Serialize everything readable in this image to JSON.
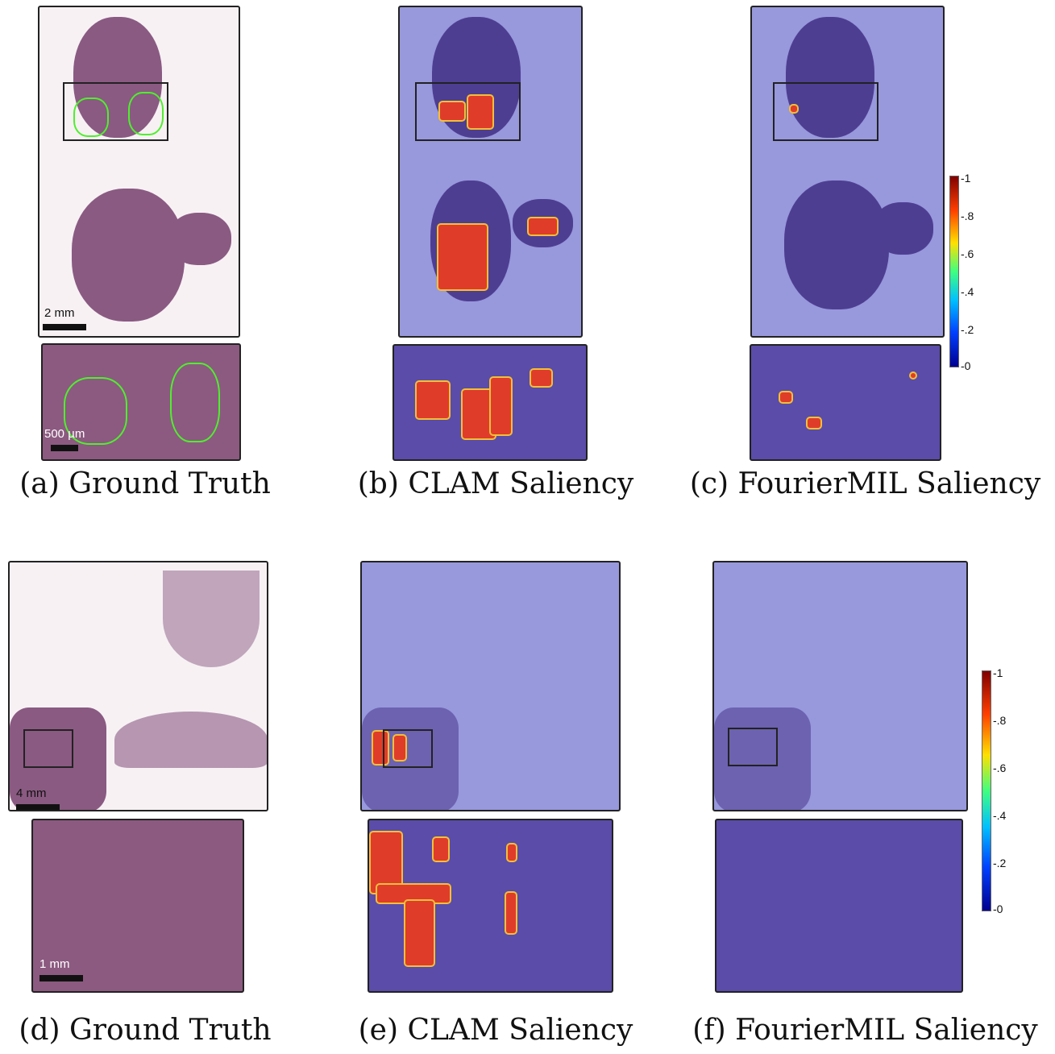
{
  "captions": {
    "a": "(a) Ground Truth",
    "b": "(b) CLAM Saliency",
    "c": "(c) FourierMIL Saliency",
    "d": "(d) Ground Truth",
    "e": "(e) CLAM Saliency",
    "f": "(f) FourierMIL Saliency"
  },
  "scale_bars": {
    "a_main": "2 mm",
    "a_zoom": "500 µm",
    "d_main": "4 mm",
    "d_zoom": "1 mm"
  },
  "colorbar_ticks": [
    "-1",
    "-.8",
    "-.6",
    "-.4",
    "-.2",
    "-0"
  ],
  "colors": {
    "ground_truth_contour": "#4ef02c",
    "saliency_background": "#9898dc",
    "high_saliency": "#e03c2a"
  }
}
